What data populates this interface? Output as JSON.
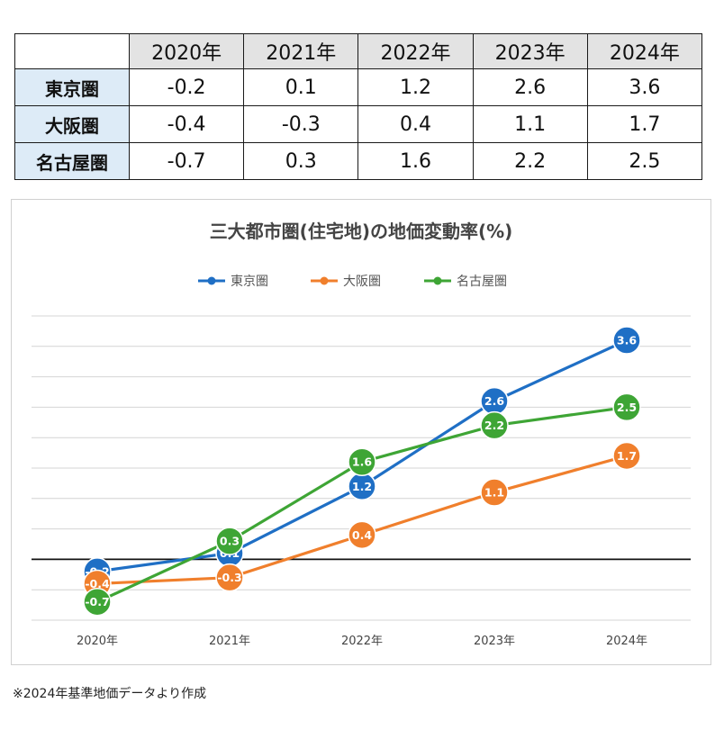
{
  "table": {
    "years": [
      "2020年",
      "2021年",
      "2022年",
      "2023年",
      "2024年"
    ],
    "rows": [
      {
        "label": "東京圏",
        "values": [
          "-0.2",
          "0.1",
          "1.2",
          "2.6",
          "3.6"
        ]
      },
      {
        "label": "大阪圏",
        "values": [
          "-0.4",
          "-0.3",
          "0.4",
          "1.1",
          "1.7"
        ]
      },
      {
        "label": "名古屋圏",
        "values": [
          "-0.7",
          "0.3",
          "1.6",
          "2.2",
          "2.5"
        ]
      }
    ]
  },
  "chart_data": {
    "type": "line",
    "title": "三大都市圏(住宅地)の地価変動率(%)",
    "categories": [
      "2020年",
      "2021年",
      "2022年",
      "2023年",
      "2024年"
    ],
    "series": [
      {
        "name": "東京圏",
        "color": "#1f6fc5",
        "values": [
          -0.2,
          0.1,
          1.2,
          2.6,
          3.6
        ]
      },
      {
        "name": "大阪圏",
        "color": "#f07f2c",
        "values": [
          -0.4,
          -0.3,
          0.4,
          1.1,
          1.7
        ]
      },
      {
        "name": "名古屋圏",
        "color": "#3ea535",
        "values": [
          -0.7,
          0.3,
          1.6,
          2.2,
          2.5
        ]
      }
    ],
    "xlabel": "",
    "ylabel": "",
    "ylim": [
      -1.0,
      4.0
    ],
    "grid": true,
    "legend_position": "top",
    "data_labels": true
  },
  "footnote": "※2024年基準地価データより作成"
}
